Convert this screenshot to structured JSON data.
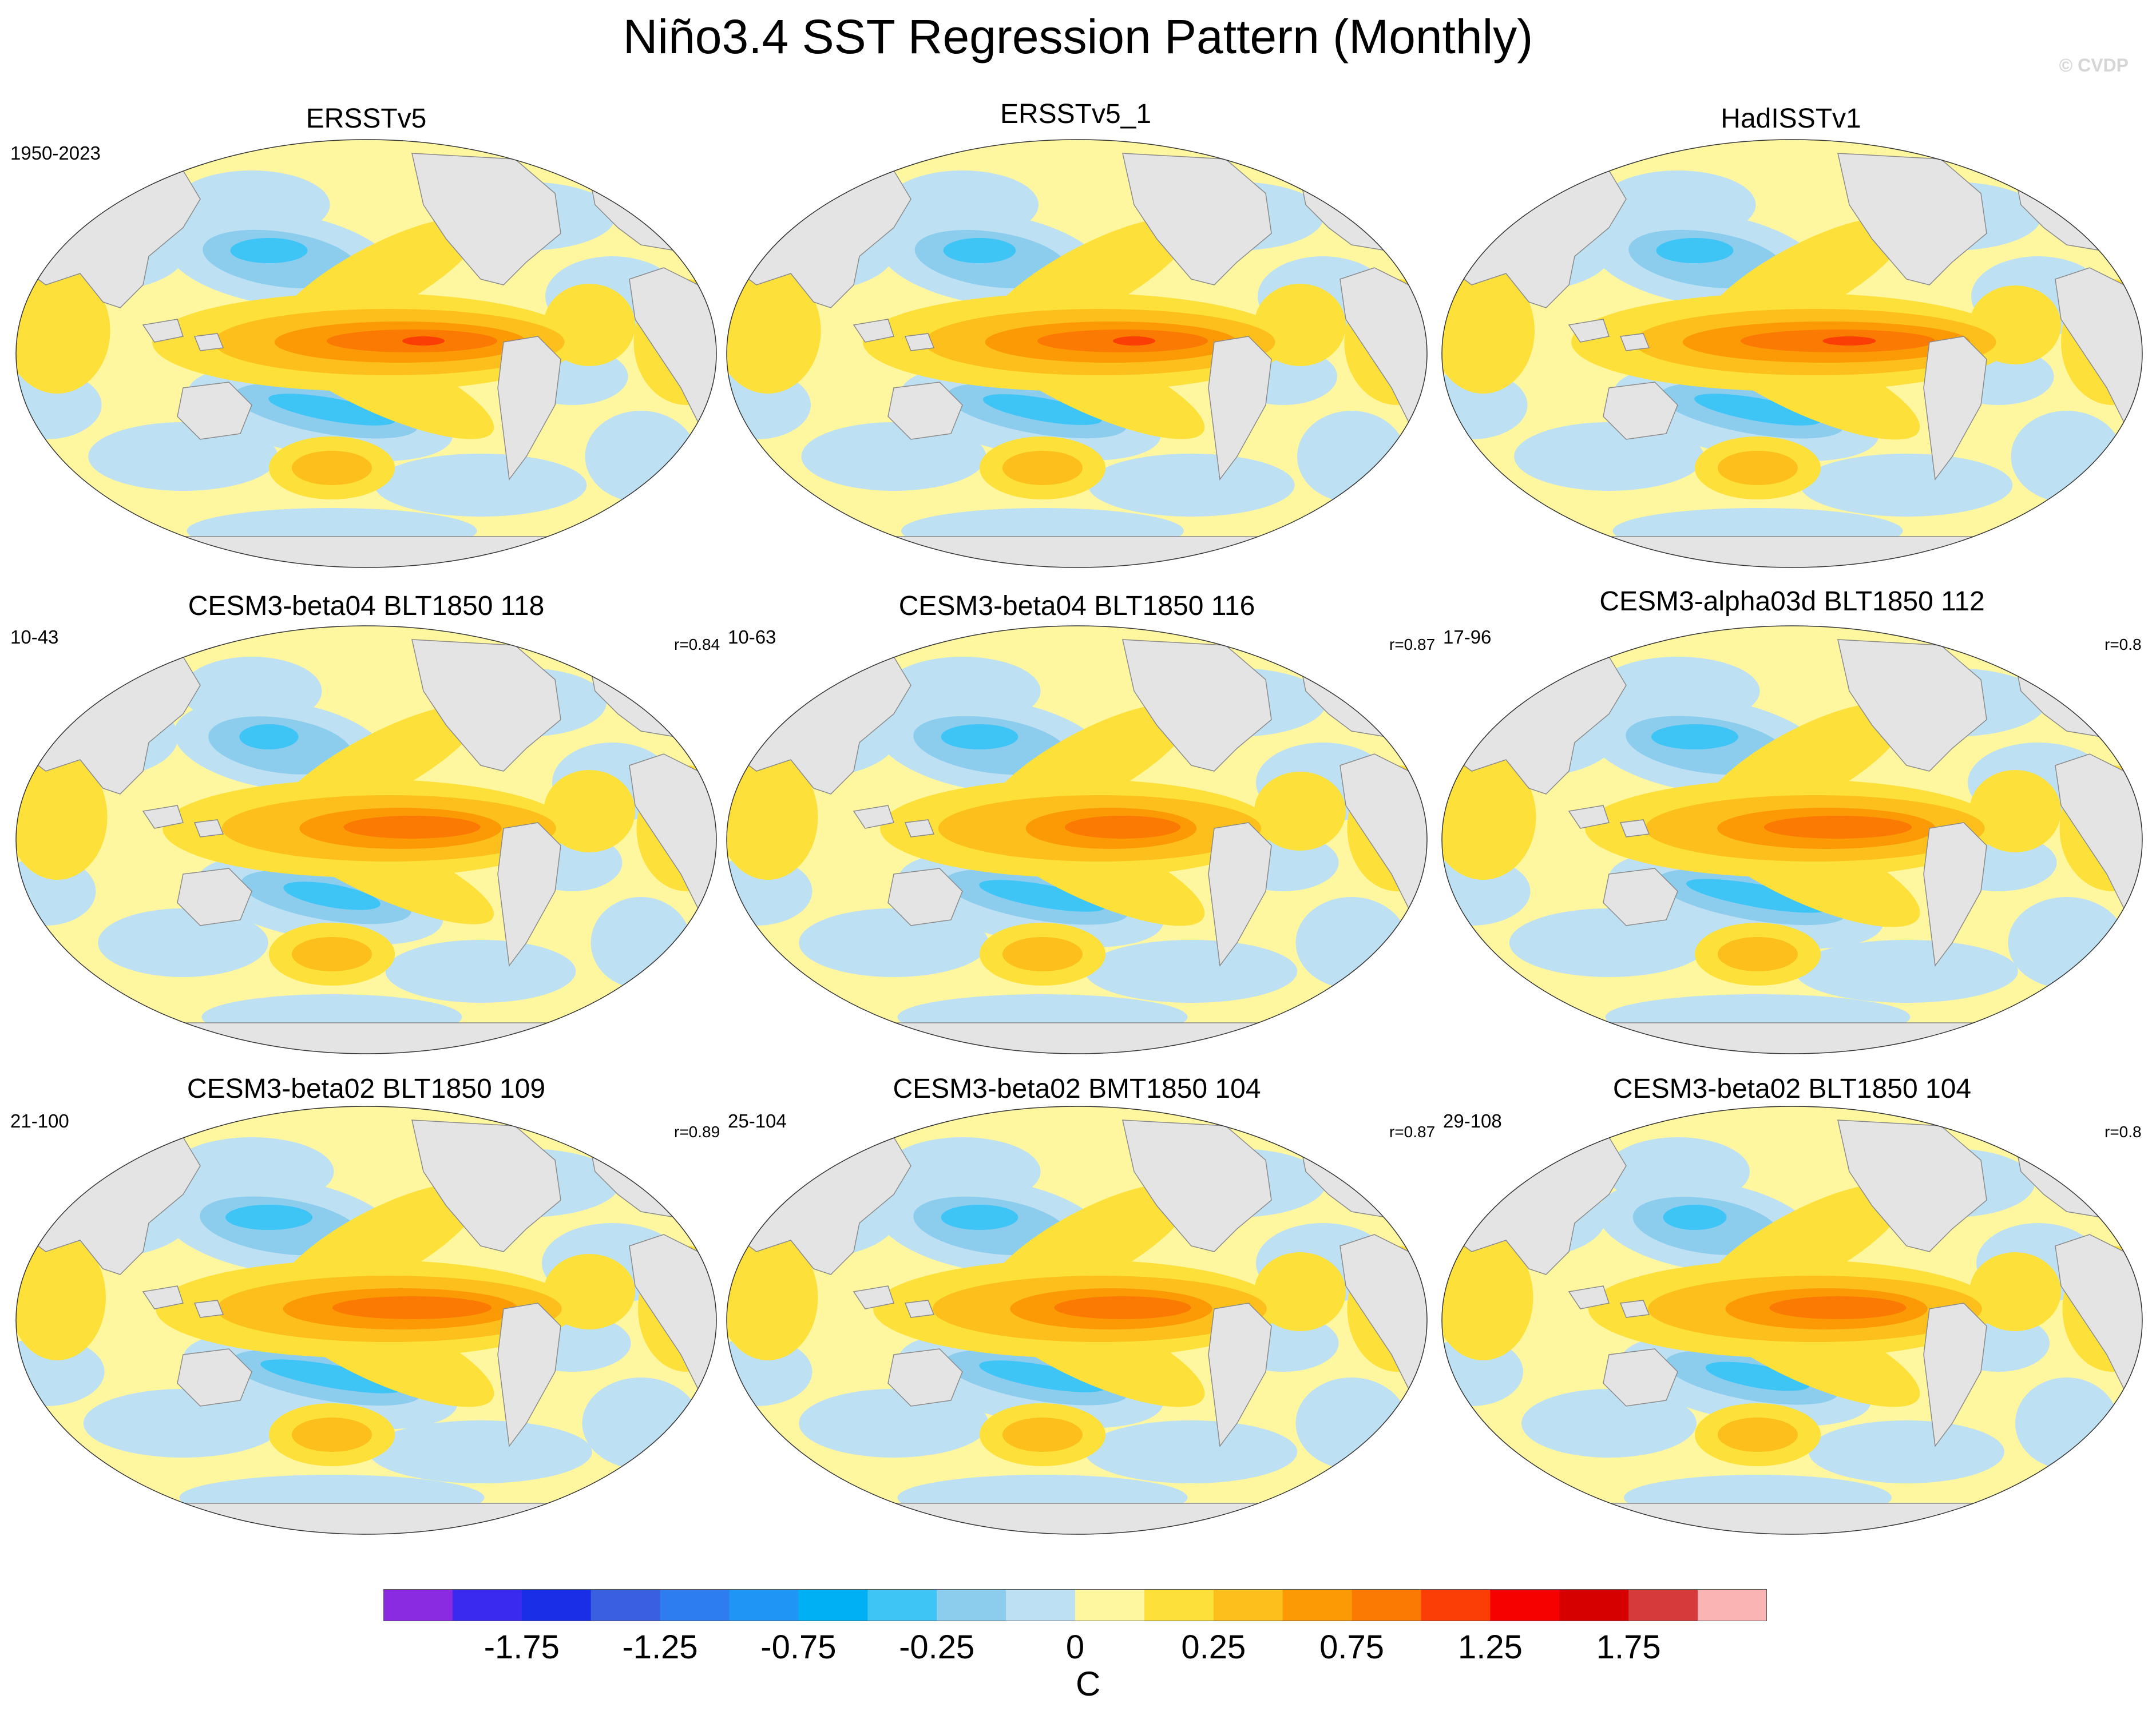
{
  "title": "Niño3.4 SST Regression Pattern (Monthly)",
  "watermark": "© CVDP",
  "panels": [
    {
      "title": "ERSSTv5",
      "years": "1950-2023",
      "corr": "",
      "pattern": {
        "eq": 0.95,
        "sub": 0.4,
        "cold": 0.55,
        "io": 0.45,
        "atl": 0.2
      }
    },
    {
      "title": "ERSSTv5_1",
      "years": "",
      "corr": "",
      "pattern": {
        "eq": 0.95,
        "sub": 0.4,
        "cold": 0.5,
        "io": 0.45,
        "atl": 0.2
      }
    },
    {
      "title": "HadISSTv1",
      "years": "",
      "corr": "",
      "pattern": {
        "eq": 1.05,
        "sub": 0.45,
        "cold": 0.55,
        "io": 0.4,
        "atl": 0.15
      }
    },
    {
      "title": "CESM3-beta04 BLT1850 118",
      "years": "10-43",
      "corr": "r=0.84",
      "pattern": {
        "eq": 0.8,
        "sub": 0.3,
        "cold": 0.35,
        "io": 0.35,
        "atl": 0.2
      }
    },
    {
      "title": "CESM3-beta04 BLT1850 116",
      "years": "10-63",
      "corr": "r=0.87",
      "pattern": {
        "eq": 0.7,
        "sub": 0.45,
        "cold": 0.55,
        "io": 0.35,
        "atl": 0.15
      }
    },
    {
      "title": "CESM3-alpha03d BLT1850 112",
      "years": "17-96",
      "corr": "r=0.8",
      "pattern": {
        "eq": 0.85,
        "sub": 0.55,
        "cold": 0.65,
        "io": 0.45,
        "atl": 0.2
      }
    },
    {
      "title": "CESM3-beta02 BLT1850 109",
      "years": "21-100",
      "corr": "r=0.89",
      "pattern": {
        "eq": 0.9,
        "sub": 0.5,
        "cold": 0.65,
        "io": 0.3,
        "atl": 0.1
      }
    },
    {
      "title": "CESM3-beta02 BMT1850 104",
      "years": "25-104",
      "corr": "r=0.87",
      "pattern": {
        "eq": 0.8,
        "sub": 0.5,
        "cold": 0.55,
        "io": 0.35,
        "atl": 0.15
      }
    },
    {
      "title": "CESM3-beta02 BLT1850 104",
      "years": "29-108",
      "corr": "r=0.8",
      "pattern": {
        "eq": 0.8,
        "sub": 0.5,
        "cold": 0.4,
        "io": 0.35,
        "atl": 0.15
      }
    }
  ],
  "colorbar": {
    "units": "C",
    "tick_labels": [
      "-1.75",
      "-1.25",
      "-0.75",
      "-0.25",
      "0",
      "0.25",
      "0.75",
      "1.25",
      "1.75"
    ],
    "colors": [
      "#8a2be2",
      "#3a2af0",
      "#1a2ee8",
      "#3a5fe0",
      "#2e7df0",
      "#1e96f5",
      "#00b0f5",
      "#3ec4f5",
      "#8ccdee",
      "#bde0f3",
      "#fff6a0",
      "#fde13a",
      "#fcbf1c",
      "#fc9a06",
      "#fb7a04",
      "#fb3d06",
      "#f60000",
      "#d60000",
      "#d63a3a",
      "#fab4b4"
    ]
  },
  "colors": {
    "land": "#e4e4e4",
    "coast": "#8a8a8a",
    "neutral_pos": "#fff6a0",
    "neutral_neg": "#bde0f3"
  }
}
